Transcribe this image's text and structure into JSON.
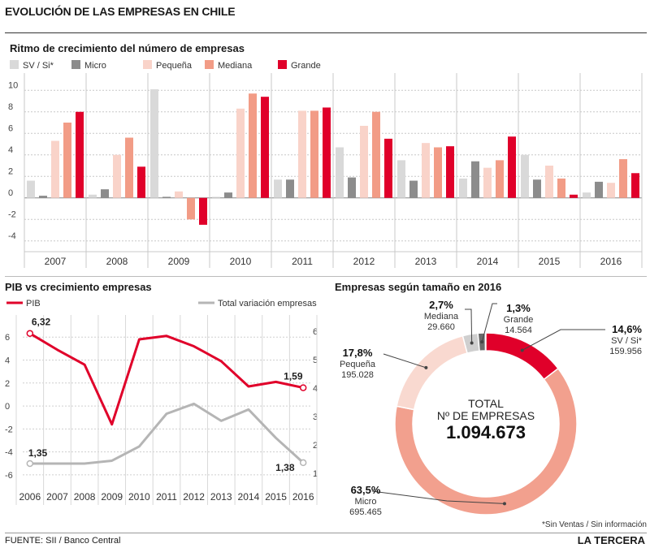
{
  "page": {
    "title": "EVOLUCIÓN DE LAS EMPRESAS EN CHILE",
    "source": "FUENTE: SII / Banco Central",
    "brand": "LA TERCERA",
    "footnote": "*Sin Ventas / Sin información"
  },
  "colors": {
    "sv": "#d9d9d9",
    "micro": "#8c8c8c",
    "pequena": "#f9d3c9",
    "mediana": "#f29c86",
    "grande": "#e0002a",
    "pib": "#e0002a",
    "total": "#b5b5b5",
    "donut_micro": "#f2a08e",
    "donut_pequena": "#f9d9d0"
  },
  "chart_data": [
    {
      "id": "growth",
      "type": "bar",
      "title": "Ritmo de crecimiento del número de empresas",
      "legend_position": "top-left",
      "grid": true,
      "ylim": [
        -5,
        11
      ],
      "yticks": [
        -4,
        -2,
        0,
        2,
        4,
        6,
        8,
        10
      ],
      "categories": [
        "2007",
        "2008",
        "2009",
        "2010",
        "2011",
        "2012",
        "2013",
        "2014",
        "2015",
        "2016"
      ],
      "series": [
        {
          "name": "SV / Si*",
          "color": "#d9d9d9",
          "values": [
            1.6,
            0.3,
            10.1,
            0.1,
            1.7,
            4.7,
            3.5,
            1.8,
            4.0,
            0.5
          ]
        },
        {
          "name": "Micro",
          "color": "#8c8c8c",
          "values": [
            0.2,
            0.8,
            0.1,
            0.5,
            1.7,
            1.9,
            1.6,
            3.4,
            1.7,
            1.5
          ]
        },
        {
          "name": "Pequeña",
          "color": "#f9d3c9",
          "values": [
            5.3,
            4.0,
            0.6,
            8.3,
            8.1,
            6.7,
            5.1,
            2.8,
            3.0,
            1.4
          ]
        },
        {
          "name": "Mediana",
          "color": "#f29c86",
          "values": [
            7.0,
            5.6,
            -2.0,
            9.7,
            8.1,
            8.0,
            4.7,
            3.5,
            1.8,
            3.6
          ]
        },
        {
          "name": "Grande",
          "color": "#e0002a",
          "values": [
            8.0,
            2.9,
            -2.5,
            9.4,
            8.4,
            5.5,
            4.8,
            5.7,
            0.3,
            2.3
          ]
        }
      ]
    },
    {
      "id": "pib",
      "type": "line",
      "title": "PIB vs crecimiento empresas",
      "x": [
        "2006",
        "2007",
        "2008",
        "2009",
        "2010",
        "2011",
        "2012",
        "2013",
        "2014",
        "2015",
        "2016"
      ],
      "ylim_left": [
        -6.5,
        7.5
      ],
      "yticks_left": [
        -6,
        -4,
        -2,
        0,
        2,
        4,
        6
      ],
      "ylim_right": [
        0.75,
        6.4
      ],
      "yticks_right": [
        1,
        2,
        3,
        4,
        5,
        6
      ],
      "series": [
        {
          "name": "PIB",
          "axis": "left",
          "color": "#e0002a",
          "values": [
            6.32,
            4.9,
            3.6,
            -1.6,
            5.8,
            6.1,
            5.2,
            3.9,
            1.7,
            2.1,
            1.59
          ],
          "first_label": "6,32",
          "last_label": "1,59"
        },
        {
          "name": "Total variación empresas",
          "axis": "right",
          "color": "#b5b5b5",
          "values": [
            1.35,
            1.35,
            1.35,
            1.45,
            1.95,
            3.1,
            3.45,
            2.85,
            3.25,
            2.25,
            1.38
          ],
          "first_label": "1,35",
          "last_label": "1,38"
        }
      ]
    },
    {
      "id": "size",
      "type": "pie",
      "title": "Empresas según tamaño en 2016",
      "total_label": "TOTAL",
      "total_sublabel": "Nº DE EMPRESAS",
      "total_value": "1.094.673",
      "slices": [
        {
          "name": "SV / Si*",
          "pct": 14.6,
          "pct_label": "14,6%",
          "count": "159.956",
          "color": "#e0002a"
        },
        {
          "name": "Micro",
          "pct": 63.5,
          "pct_label": "63,5%",
          "count": "695.465",
          "color": "#f2a08e"
        },
        {
          "name": "Pequeña",
          "pct": 17.8,
          "pct_label": "17,8%",
          "count": "195.028",
          "color": "#f9d9d0"
        },
        {
          "name": "Mediana",
          "pct": 2.7,
          "pct_label": "2,7%",
          "count": "29.660",
          "color": "#cfcfcf"
        },
        {
          "name": "Grande",
          "pct": 1.3,
          "pct_label": "1,3%",
          "count": "14.564",
          "color": "#6b6b6b"
        }
      ]
    }
  ]
}
